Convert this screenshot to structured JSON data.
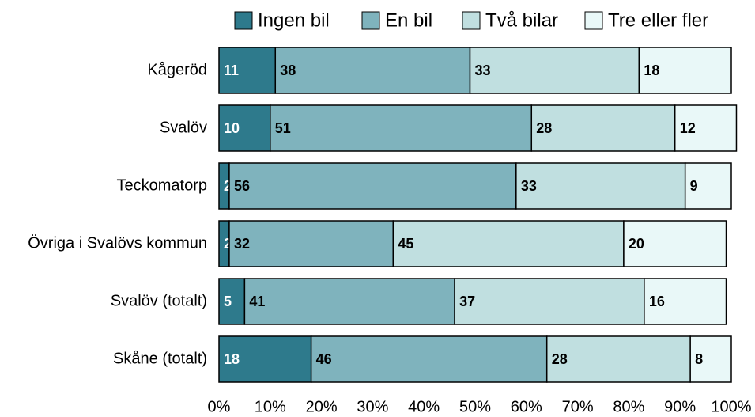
{
  "chart_data": {
    "type": "stacked-bar-horizontal",
    "categories": [
      "Kågeröd",
      "Svalöv",
      "Teckomatorp",
      "Övriga i Svalövs kommun",
      "Svalöv (totalt)",
      "Skåne (totalt)"
    ],
    "series": [
      {
        "name": "Ingen bil",
        "color": "#2e7a8c",
        "values": [
          11,
          10,
          2,
          2,
          5,
          18
        ]
      },
      {
        "name": "En bil",
        "color": "#7fb3bd",
        "values": [
          38,
          51,
          56,
          32,
          41,
          46
        ]
      },
      {
        "name": "Två bilar",
        "color": "#c0dfe0",
        "values": [
          33,
          28,
          33,
          45,
          37,
          28
        ]
      },
      {
        "name": "Tre eller fler",
        "color": "#e9f8f8",
        "values": [
          18,
          12,
          9,
          20,
          16,
          8
        ]
      }
    ],
    "xlim": [
      0,
      100
    ],
    "xticks": [
      {
        "value": 0,
        "label": "0%"
      },
      {
        "value": 10,
        "label": "10%"
      },
      {
        "value": 20,
        "label": "20%"
      },
      {
        "value": 30,
        "label": "30%"
      },
      {
        "value": 40,
        "label": "40%"
      },
      {
        "value": 50,
        "label": "50%"
      },
      {
        "value": 60,
        "label": "60%"
      },
      {
        "value": 70,
        "label": "70%"
      },
      {
        "value": 80,
        "label": "80%"
      },
      {
        "value": 90,
        "label": "90%"
      },
      {
        "value": 100,
        "label": "100%"
      }
    ],
    "legend": "top"
  }
}
